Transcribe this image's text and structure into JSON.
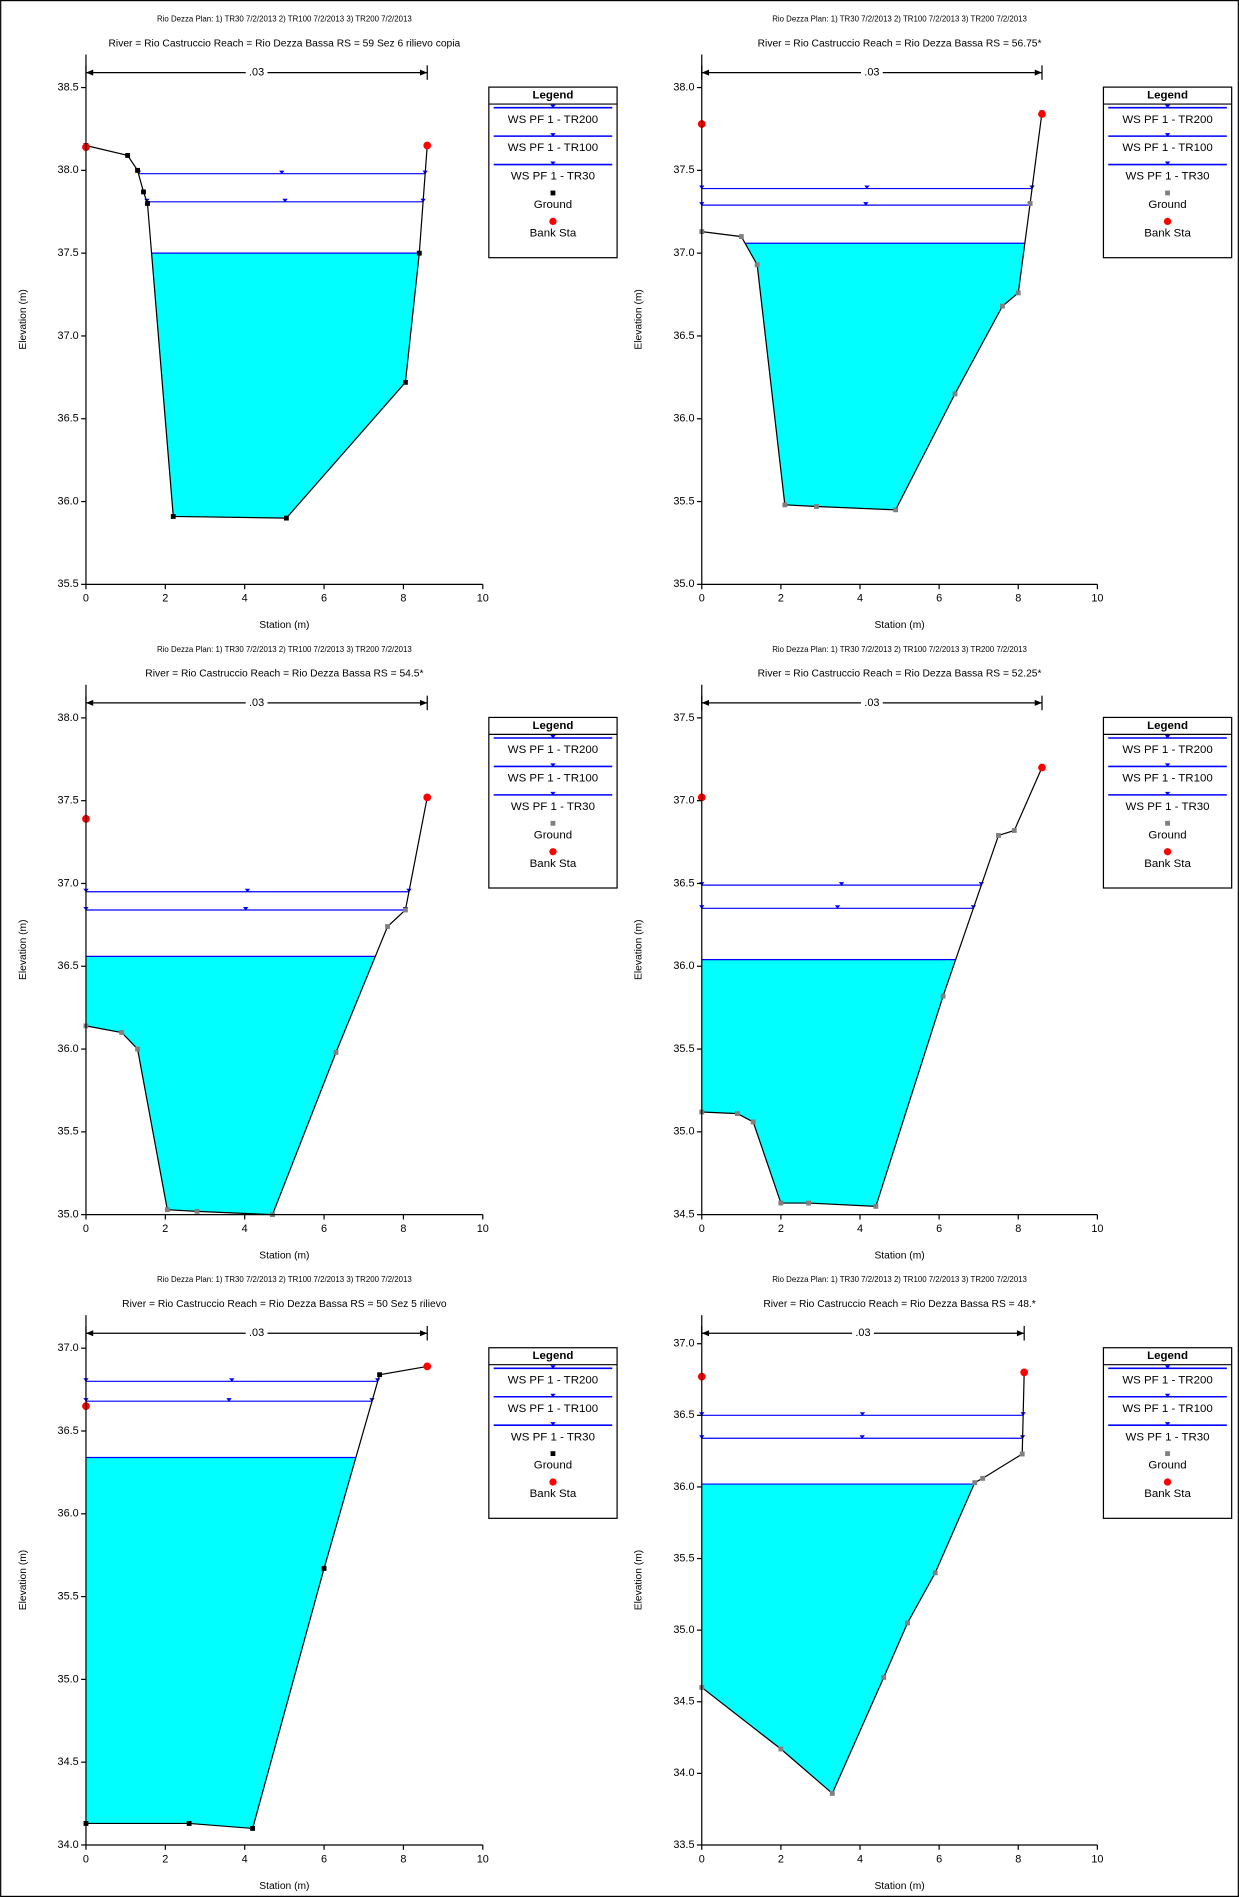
{
  "chart_data": [
    {
      "type": "cross-section",
      "plan": "Rio Dezza     Plan:    1) TR30    7/2/2013    2) TR100    7/2/2013    3) TR200    7/2/2013",
      "title": "River = Rio Castruccio   Reach = Rio Dezza Bassa    RS = 59    Sez 6 rilievo copia",
      "xlabel": "Station (m)",
      "ylabel": "Elevation (m)",
      "xlim": [
        0,
        10
      ],
      "xticks": [
        0,
        2,
        4,
        6,
        8,
        10
      ],
      "ylim": [
        35.5,
        38.7
      ],
      "yticks": [
        38.5,
        {
          "value": 38,
          "label": "38.0"
        },
        37.5,
        {
          "value": 37,
          "label": "37.0"
        },
        36.5,
        {
          "value": 36,
          "label": "36.0"
        },
        35.5
      ],
      "legend_title": "Legend",
      "n_label": ".03",
      "ws": [
        {
          "name": "WS PF 1 - TR200",
          "color": "#0000ff",
          "level": 37.98
        },
        {
          "name": "WS PF 1 - TR100",
          "color": "#0000ff",
          "level": 37.81
        },
        {
          "name": "WS PF 1 - TR30",
          "color": "#0000ff",
          "fill": "#00ffff",
          "level": 37.5
        }
      ],
      "ground": {
        "name": "Ground",
        "color": "#000000",
        "x": [
          0,
          1.05,
          1.3,
          1.45,
          1.55,
          2.2,
          5.05,
          8.05,
          8.4,
          8.6
        ],
        "y": [
          38.15,
          38.09,
          38.0,
          37.87,
          37.8,
          35.91,
          35.9,
          36.72,
          37.5,
          38.15
        ]
      },
      "bank": {
        "name": "Bank Sta",
        "color": "#ff0000",
        "x": [
          0,
          8.6
        ],
        "y": [
          38.14,
          38.15
        ]
      }
    },
    {
      "type": "cross-section",
      "plan": "Rio Dezza     Plan:    1) TR30    7/2/2013    2) TR100    7/2/2013    3) TR200    7/2/2013",
      "title": "River = Rio Castruccio    Reach = Rio Dezza Bassa      RS = 56.75*",
      "xlabel": "Station (m)",
      "ylabel": "Elevation (m)",
      "xlim": [
        0,
        10
      ],
      "xticks": [
        0,
        2,
        4,
        6,
        8,
        10
      ],
      "ylim": [
        35.0,
        38.2
      ],
      "yticks": [
        {
          "value": 38,
          "label": "38.0"
        },
        37.5,
        {
          "value": 37,
          "label": "37.0"
        },
        36.5,
        {
          "value": 36,
          "label": "36.0"
        },
        35.5,
        {
          "value": 35,
          "label": "35.0"
        }
      ],
      "legend_title": "Legend",
      "n_label": ".03",
      "ws": [
        {
          "name": "WS PF 1 - TR200",
          "color": "#0000ff",
          "level": 37.39
        },
        {
          "name": "WS PF 1 - TR100",
          "color": "#0000ff",
          "level": 37.29
        },
        {
          "name": "WS PF 1 - TR30",
          "color": "#0000ff",
          "fill": "#00ffff",
          "level": 37.06
        }
      ],
      "ground": {
        "name": "Ground",
        "color": "#808080",
        "x": [
          0,
          1,
          1.4,
          2.1,
          2.9,
          4.9,
          6.4,
          7.6,
          8,
          8.3,
          8.6
        ],
        "y": [
          37.13,
          37.1,
          36.93,
          35.48,
          35.47,
          35.45,
          36.15,
          36.68,
          36.76,
          37.3,
          37.85
        ]
      },
      "bank": {
        "name": "Bank Sta",
        "color": "#ff0000",
        "x": [
          0,
          8.6
        ],
        "y": [
          37.78,
          37.84
        ]
      }
    },
    {
      "type": "cross-section",
      "plan": "Rio Dezza     Plan:    1) TR30    7/2/2013    2) TR100    7/2/2013    3) TR200    7/2/2013",
      "title": "River = Rio Castruccio    Reach = Rio Dezza Bassa      RS = 54.5*",
      "xlabel": "Station (m)",
      "ylabel": "Elevation (m)",
      "xlim": [
        0,
        10
      ],
      "xticks": [
        0,
        2,
        4,
        6,
        8,
        10
      ],
      "ylim": [
        35.0,
        38.2
      ],
      "yticks": [
        {
          "value": 38,
          "label": "38.0"
        },
        37.5,
        {
          "value": 37,
          "label": "37.0"
        },
        36.5,
        {
          "value": 36,
          "label": "36.0"
        },
        35.5,
        {
          "value": 35,
          "label": "35.0"
        }
      ],
      "legend_title": "Legend",
      "n_label": ".03",
      "ws": [
        {
          "name": "WS PF 1 - TR200",
          "color": "#0000ff",
          "level": 36.95
        },
        {
          "name": "WS PF 1 - TR100",
          "color": "#0000ff",
          "level": 36.84
        },
        {
          "name": "WS PF 1 - TR30",
          "color": "#0000ff",
          "fill": "#00ffff",
          "level": 36.56
        }
      ],
      "ground": {
        "name": "Ground",
        "color": "#808080",
        "x": [
          0,
          0.9,
          1.3,
          2.05,
          2.8,
          4.7,
          6.3,
          7.6,
          8.05,
          8.6
        ],
        "y": [
          36.14,
          36.1,
          36.0,
          35.03,
          35.02,
          35.0,
          35.98,
          36.74,
          36.84,
          37.52
        ]
      },
      "bank": {
        "name": "Bank Sta",
        "color": "#ff0000",
        "x": [
          0,
          8.6
        ],
        "y": [
          37.39,
          37.52
        ]
      }
    },
    {
      "type": "cross-section",
      "plan": "Rio Dezza     Plan:    1) TR30    7/2/2013    2) TR100    7/2/2013    3) TR200    7/2/2013",
      "title": "River = Rio Castruccio    Reach = Rio Dezza Bassa      RS = 52.25*",
      "xlabel": "Station (m)",
      "ylabel": "Elevation (m)",
      "xlim": [
        0,
        10
      ],
      "xticks": [
        0,
        2,
        4,
        6,
        8,
        10
      ],
      "ylim": [
        34.5,
        37.7
      ],
      "yticks": [
        37.5,
        {
          "value": 37,
          "label": "37.0"
        },
        36.5,
        {
          "value": 36,
          "label": "36.0"
        },
        35.5,
        {
          "value": 35,
          "label": "35.0"
        },
        34.5
      ],
      "legend_title": "Legend",
      "n_label": ".03",
      "ws": [
        {
          "name": "WS PF 1 - TR200",
          "color": "#0000ff",
          "level": 36.49
        },
        {
          "name": "WS PF 1 - TR100",
          "color": "#0000ff",
          "level": 36.35
        },
        {
          "name": "WS PF 1 - TR30",
          "color": "#0000ff",
          "fill": "#00ffff",
          "level": 36.04
        }
      ],
      "ground": {
        "name": "Ground",
        "color": "#808080",
        "x": [
          0,
          0.9,
          1.3,
          2.0,
          2.7,
          4.4,
          6.1,
          7.5,
          7.9,
          8.6
        ],
        "y": [
          35.12,
          35.11,
          35.06,
          34.57,
          34.57,
          34.55,
          35.82,
          36.79,
          36.82,
          37.2
        ]
      },
      "bank": {
        "name": "Bank Sta",
        "color": "#ff0000",
        "x": [
          0,
          8.6
        ],
        "y": [
          37.02,
          37.2
        ]
      }
    },
    {
      "type": "cross-section",
      "plan": "Rio Dezza     Plan:    1) TR30    7/2/2013    2) TR100    7/2/2013    3) TR200    7/2/2013",
      "title": "River = Rio Castruccio   Reach = Rio Dezza Bassa     RS = 50    Sez 5 rilievo",
      "xlabel": "Station (m)",
      "ylabel": "Elevation (m)",
      "xlim": [
        0,
        10
      ],
      "xticks": [
        0,
        2,
        4,
        6,
        8,
        10
      ],
      "ylim": [
        34.0,
        37.2
      ],
      "yticks": [
        {
          "value": 37,
          "label": "37.0"
        },
        36.5,
        {
          "value": 36,
          "label": "36.0"
        },
        35.5,
        {
          "value": 35,
          "label": "35.0"
        },
        34.5,
        {
          "value": 34,
          "label": "34.0"
        }
      ],
      "legend_title": "Legend",
      "n_label": ".03",
      "ws": [
        {
          "name": "WS PF 1 - TR200",
          "color": "#0000ff",
          "level": 36.8
        },
        {
          "name": "WS PF 1 - TR100",
          "color": "#0000ff",
          "level": 36.68
        },
        {
          "name": "WS PF 1 - TR30",
          "color": "#0000ff",
          "fill": "#00ffff",
          "level": 36.34
        }
      ],
      "ground": {
        "name": "Ground",
        "color": "#000000",
        "x": [
          0,
          2.6,
          4.2,
          6.0,
          7.4,
          8.6
        ],
        "y": [
          34.13,
          34.13,
          34.1,
          35.67,
          36.84,
          36.89
        ]
      },
      "bank": {
        "name": "Bank Sta",
        "color": "#ff0000",
        "x": [
          0,
          8.6
        ],
        "y": [
          36.65,
          36.89
        ]
      }
    },
    {
      "type": "cross-section",
      "plan": "Rio Dezza     Plan:    1) TR30    7/2/2013    2) TR100    7/2/2013    3) TR200    7/2/2013",
      "title": "River = Rio Castruccio    Reach = Rio Dezza Bassa      RS = 48.*",
      "xlabel": "Station (m)",
      "ylabel": "Elevation (m)",
      "xlim": [
        0,
        10
      ],
      "xticks": [
        0,
        2,
        4,
        6,
        8,
        10
      ],
      "ylim": [
        33.5,
        37.2
      ],
      "yticks": [
        {
          "value": 37,
          "label": "37.0"
        },
        36.5,
        {
          "value": 36,
          "label": "36.0"
        },
        35.5,
        {
          "value": 35,
          "label": "35.0"
        },
        34.5,
        {
          "value": 34,
          "label": "34.0"
        },
        33.5
      ],
      "legend_title": "Legend",
      "n_label": ".03",
      "ws": [
        {
          "name": "WS PF 1 - TR200",
          "color": "#0000ff",
          "level": 36.5
        },
        {
          "name": "WS PF 1 - TR100",
          "color": "#0000ff",
          "level": 36.34
        },
        {
          "name": "WS PF 1 - TR30",
          "color": "#0000ff",
          "fill": "#00ffff",
          "level": 36.02
        }
      ],
      "ground": {
        "name": "Ground",
        "color": "#808080",
        "x": [
          0,
          2.0,
          3.3,
          4.6,
          5.2,
          5.9,
          6.9,
          7.1,
          8.1,
          8.15
        ],
        "y": [
          34.6,
          34.17,
          33.86,
          34.67,
          35.05,
          35.4,
          36.03,
          36.06,
          36.23,
          36.8
        ]
      },
      "bank": {
        "name": "Bank Sta",
        "color": "#ff0000",
        "x": [
          0,
          8.15
        ],
        "y": [
          36.77,
          36.8
        ]
      }
    }
  ]
}
